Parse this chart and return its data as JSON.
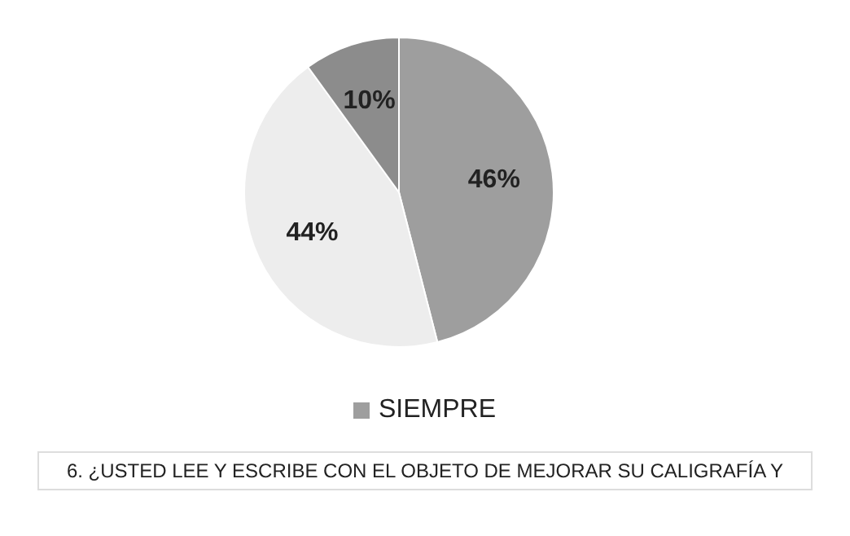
{
  "chart_data": {
    "type": "pie",
    "categories": [
      "SIEMPRE",
      null,
      null
    ],
    "values": [
      46,
      44,
      10
    ],
    "colors": [
      "#9e9e9e",
      "#ededed",
      "#8c8c8c"
    ],
    "value_labels": [
      "46%",
      "44%",
      "10%"
    ],
    "legend": "bottom",
    "annotations": [
      "6. ¿USTED LEE Y ESCRIBE CON EL OBJETO DE MEJORAR SU CALIGRAFÍA Y"
    ]
  }
}
